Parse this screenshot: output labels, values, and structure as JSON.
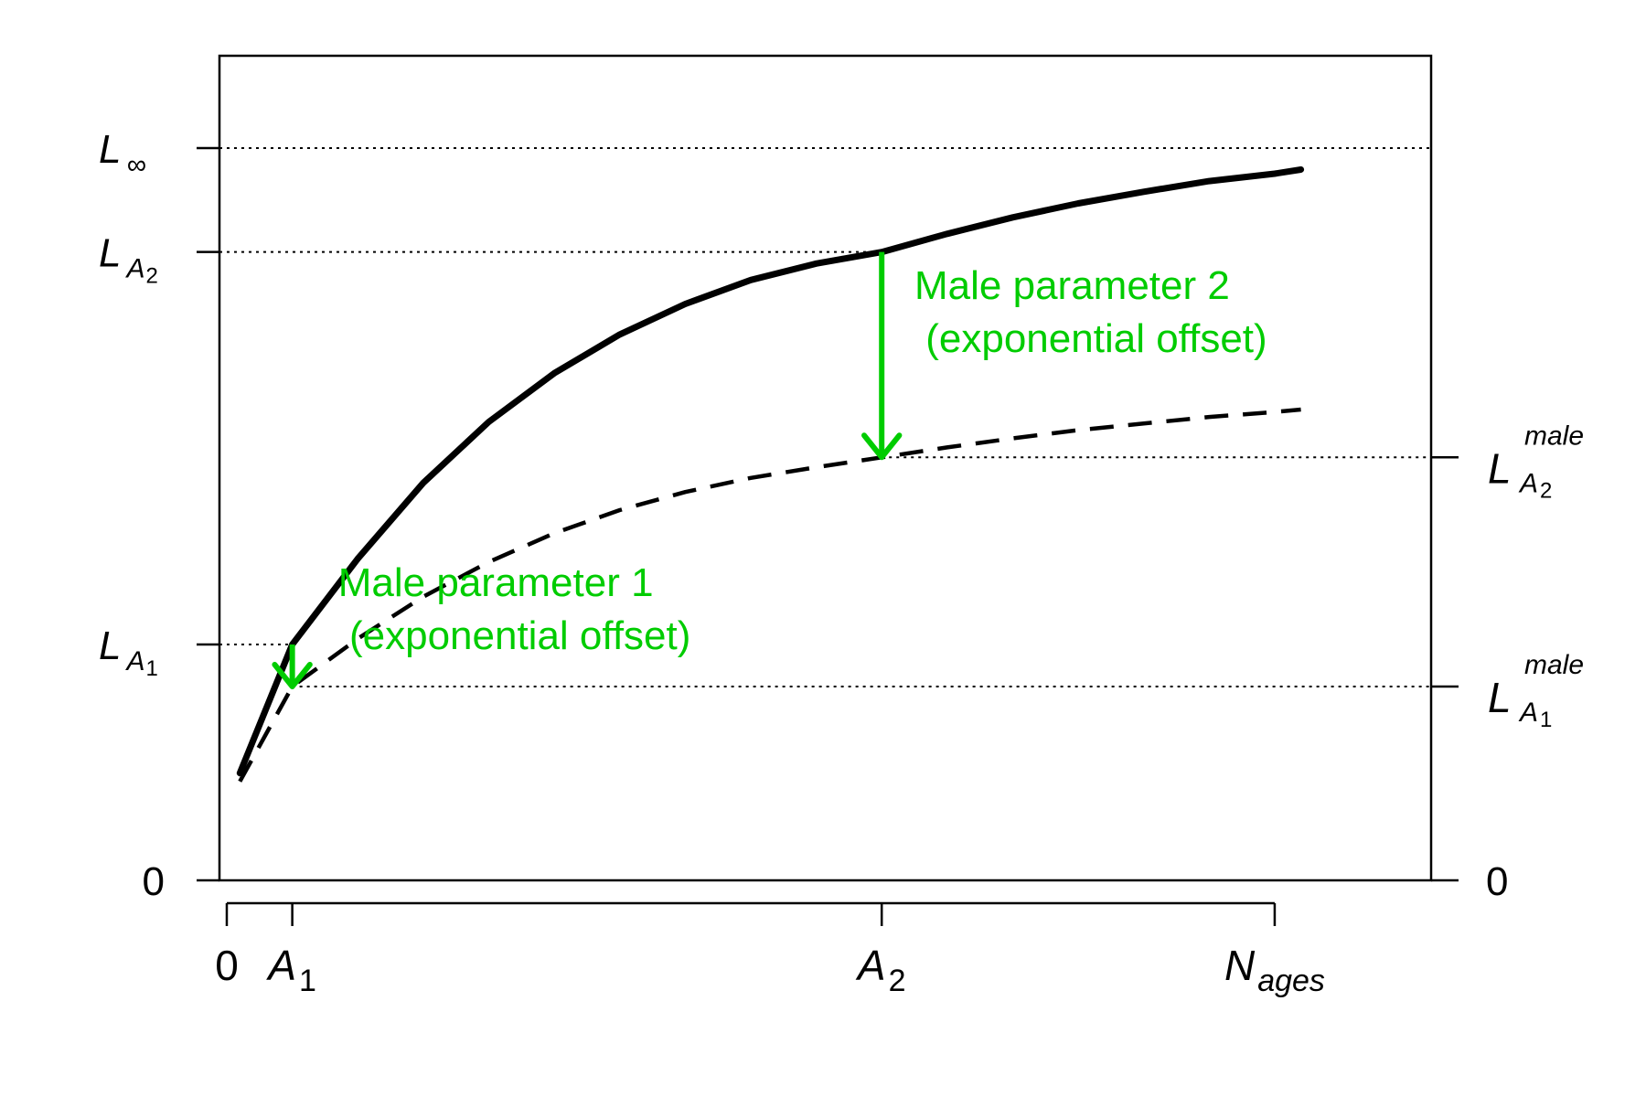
{
  "chart_data": {
    "type": "line",
    "title": "",
    "xlabel": "",
    "ylabel": "",
    "xlim": [
      0,
      10
    ],
    "ylim": [
      0,
      100
    ],
    "x_ticks": [
      {
        "value": 0,
        "label": "0"
      },
      {
        "value": 0.5,
        "label": "A",
        "sub": "1"
      },
      {
        "value": 5,
        "label": "A",
        "sub": "2"
      },
      {
        "value": 8,
        "label": "N",
        "sub": "ages"
      }
    ],
    "y_ticks_left": [
      {
        "value": 0,
        "label": "0"
      },
      {
        "value": 28.6,
        "label": "L",
        "sub": "A",
        "subsub": "1"
      },
      {
        "value": 76.2,
        "label": "L",
        "sub": "A",
        "subsub": "2"
      },
      {
        "value": 88.8,
        "label": "L",
        "sub": "∞"
      }
    ],
    "y_ticks_right": [
      {
        "value": 0,
        "label": "0"
      },
      {
        "value": 23.5,
        "label": "L",
        "sup": "male",
        "sub": "A",
        "subsub": "1"
      },
      {
        "value": 51.3,
        "label": "L",
        "sup": "male",
        "sub": "A",
        "subsub": "2"
      }
    ],
    "series": [
      {
        "style": "solid",
        "x": [
          0.1,
          0.5,
          1.0,
          1.5,
          2.0,
          2.5,
          3.0,
          3.5,
          4.0,
          4.5,
          5.0,
          5.5,
          6.0,
          6.5,
          7.0,
          7.5,
          8.0,
          8.2
        ],
        "y": [
          13.0,
          28.6,
          39.0,
          48.2,
          55.6,
          61.5,
          66.2,
          69.9,
          72.8,
          74.8,
          76.2,
          78.4,
          80.4,
          82.1,
          83.5,
          84.8,
          85.7,
          86.2
        ]
      },
      {
        "style": "dashed",
        "x": [
          0.1,
          0.5,
          1.0,
          1.5,
          2.0,
          2.5,
          3.0,
          3.5,
          4.0,
          4.5,
          5.0,
          5.5,
          6.0,
          6.5,
          7.0,
          7.5,
          8.0,
          8.2
        ],
        "y": [
          12.0,
          23.5,
          29.3,
          34.4,
          38.6,
          42.1,
          44.9,
          47.1,
          48.8,
          50.1,
          51.3,
          52.5,
          53.6,
          54.6,
          55.4,
          56.2,
          56.8,
          57.1
        ]
      }
    ],
    "reference_lines": [
      {
        "axis": "left",
        "y": 88.8,
        "x_to": 10
      },
      {
        "axis": "left",
        "y": 76.2,
        "x_to": 5
      },
      {
        "axis": "left",
        "y": 28.6,
        "x_to": 0.5
      },
      {
        "axis": "right",
        "y": 51.3,
        "x_from": 5
      },
      {
        "axis": "right",
        "y": 23.5,
        "x_from": 0.5
      }
    ],
    "arrows": [
      {
        "x": 0.5,
        "y_from": 28.6,
        "y_to": 23.5
      },
      {
        "x": 5,
        "y_from": 76.2,
        "y_to": 51.3
      }
    ],
    "annotations": [
      {
        "lines": [
          "Male parameter 2",
          " (exponential offset)"
        ],
        "x": 5.25,
        "y": 70.5
      },
      {
        "lines": [
          "Male parameter 1",
          " (exponential offset)"
        ],
        "x": 0.85,
        "y": 34.5
      }
    ],
    "colors": {
      "line": "#000000",
      "annotation": "#00cc00"
    }
  }
}
